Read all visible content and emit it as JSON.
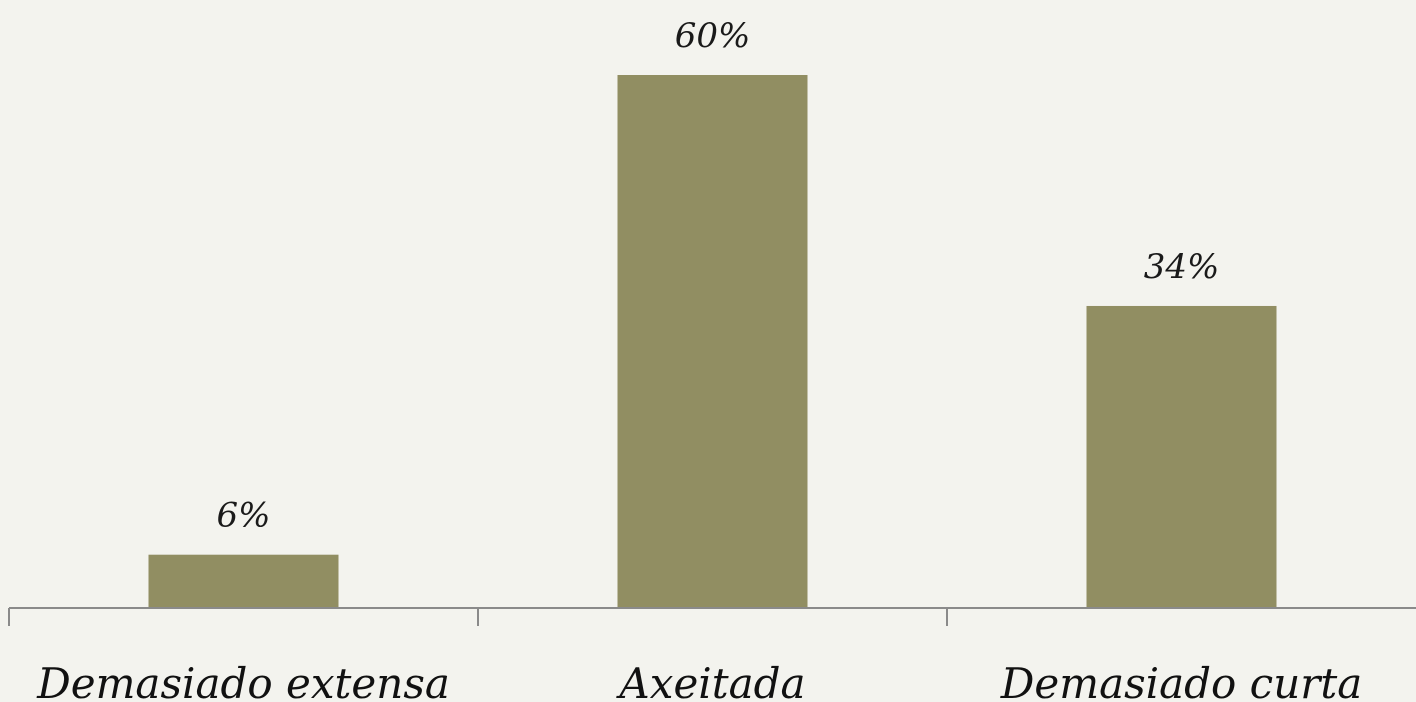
{
  "chart_data": {
    "type": "bar",
    "categories": [
      "Demasiado extensa",
      "Axeitada",
      "Demasiado curta"
    ],
    "values": [
      6,
      60,
      34
    ],
    "data_labels": [
      "6%",
      "60%",
      "34%"
    ],
    "unit": "%",
    "title": "",
    "xlabel": "",
    "ylabel": "",
    "ylim": [
      0,
      60
    ],
    "grid": false,
    "legend": "none",
    "colors": {
      "bar": "#918e62",
      "axis": "#8a8a8a",
      "background": "#f3f3ee"
    }
  }
}
